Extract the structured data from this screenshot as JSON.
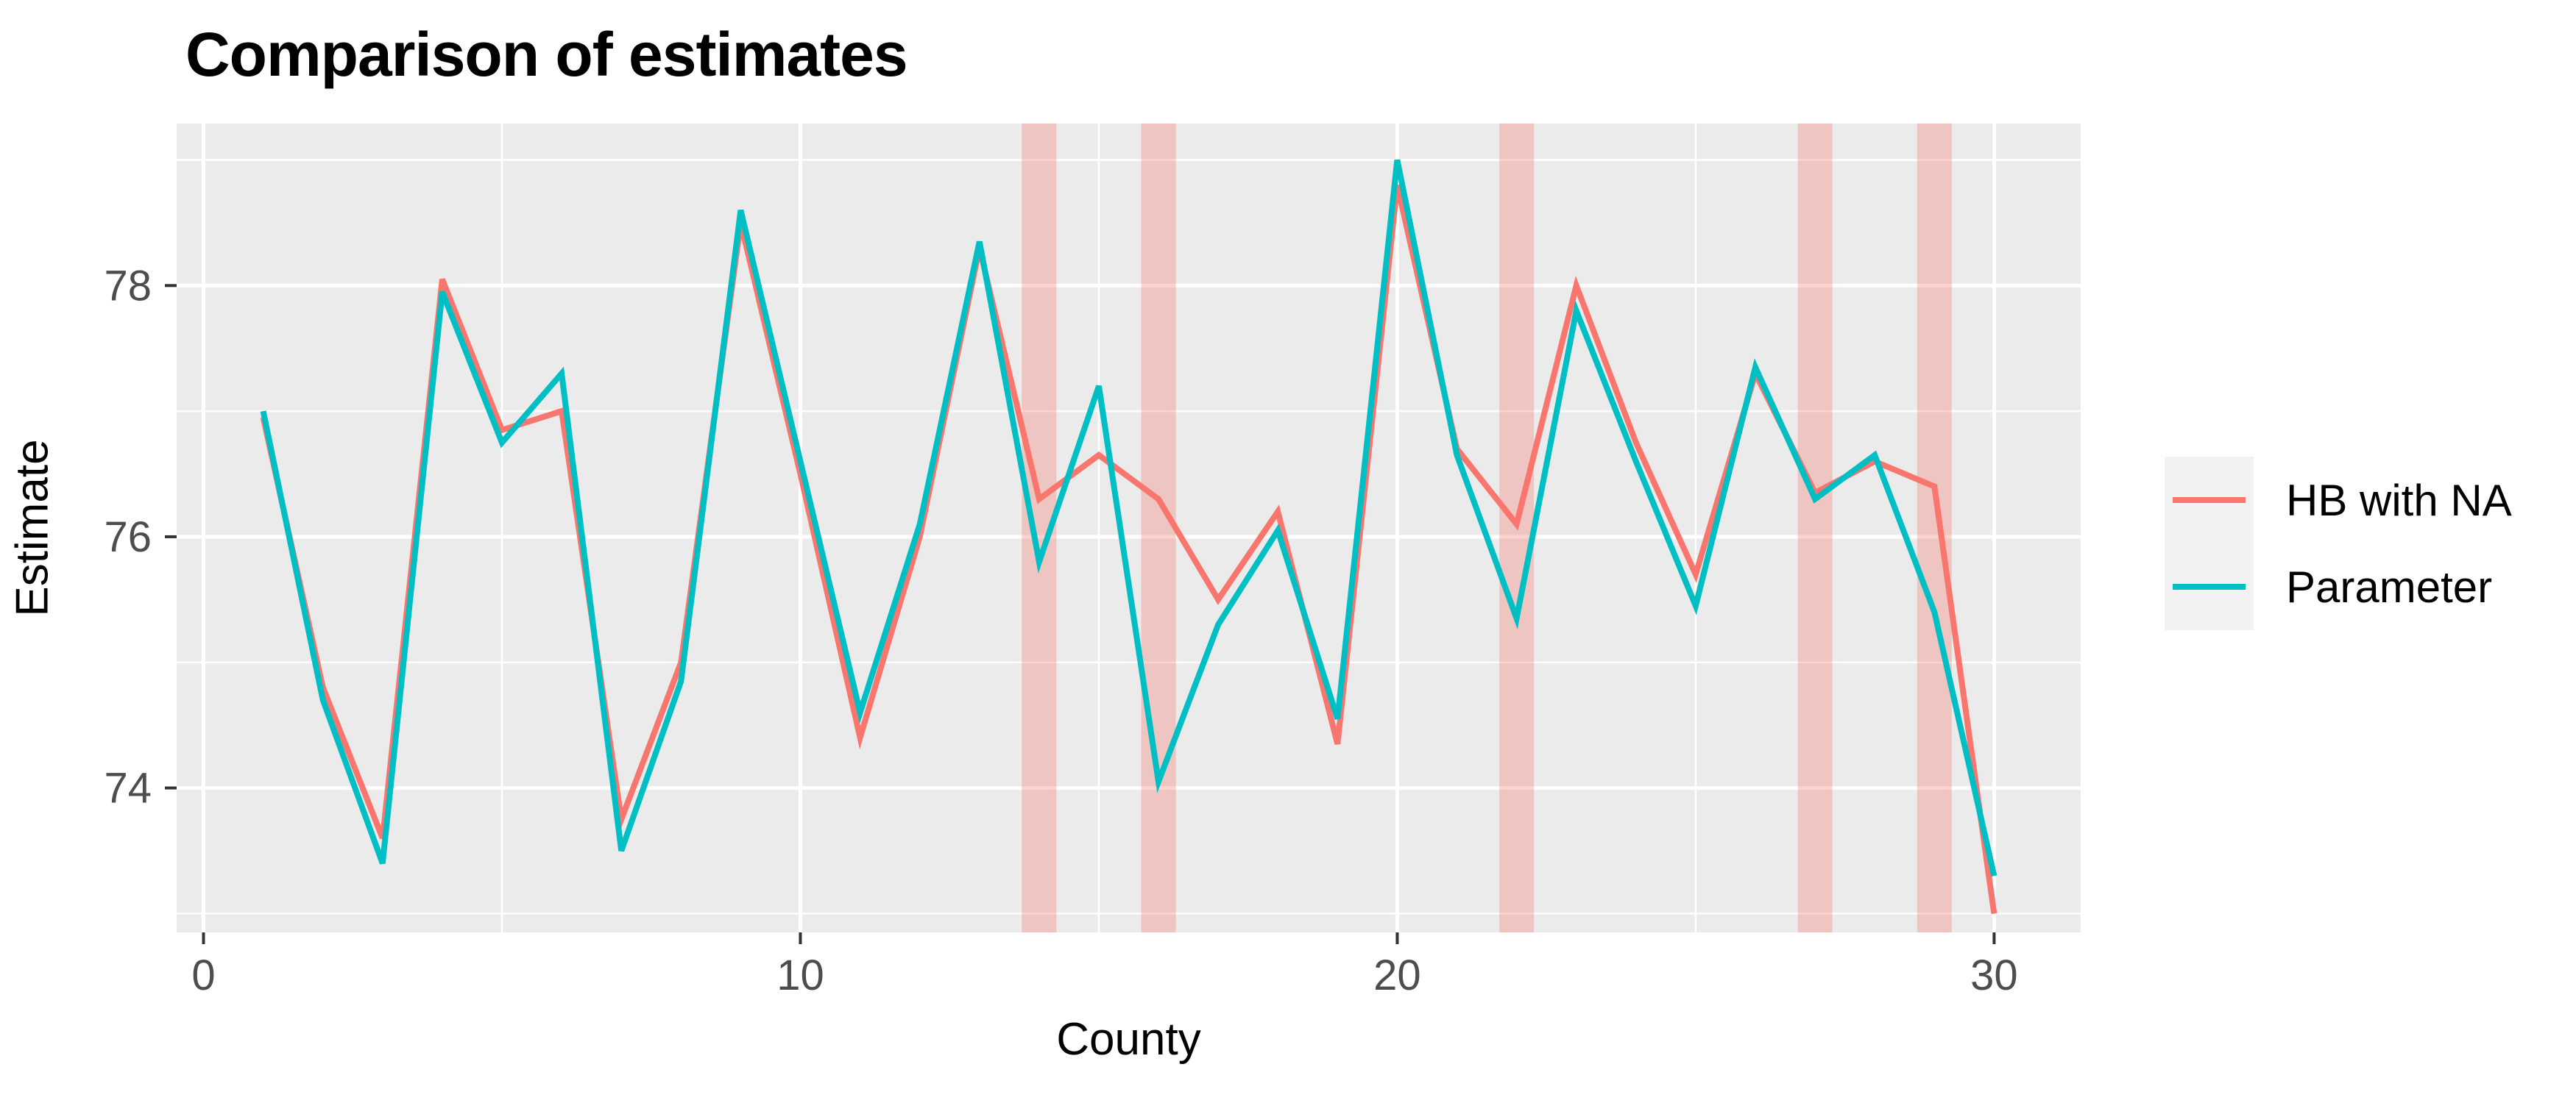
{
  "page": {
    "background": "#FFFFFF"
  },
  "chart_data": {
    "type": "line",
    "title": "Comparison of estimates",
    "xlabel": "County",
    "ylabel": "Estimate",
    "x": [
      1,
      2,
      3,
      4,
      5,
      6,
      7,
      8,
      9,
      10,
      11,
      12,
      13,
      14,
      15,
      16,
      17,
      18,
      19,
      20,
      21,
      22,
      23,
      24,
      25,
      26,
      27,
      28,
      29,
      30
    ],
    "series": [
      {
        "name": "HB with NA",
        "color": "#F8766D",
        "values": [
          76.95,
          74.8,
          73.6,
          78.05,
          76.85,
          77.0,
          73.75,
          75.0,
          78.5,
          76.5,
          74.4,
          76.0,
          78.3,
          76.3,
          76.65,
          76.3,
          75.5,
          76.2,
          74.35,
          78.8,
          76.7,
          76.1,
          78.0,
          76.75,
          75.7,
          77.3,
          76.35,
          76.6,
          76.4,
          73.0
        ]
      },
      {
        "name": "Parameter",
        "color": "#00BFC4",
        "values": [
          77.0,
          74.7,
          73.4,
          77.95,
          76.75,
          77.3,
          73.5,
          74.85,
          78.6,
          76.6,
          74.6,
          76.1,
          78.35,
          75.8,
          77.2,
          74.05,
          75.3,
          76.05,
          74.55,
          79.0,
          76.65,
          75.35,
          77.8,
          76.6,
          75.45,
          77.35,
          76.3,
          76.65,
          75.4,
          73.3
        ]
      }
    ],
    "highlight_bands": {
      "counties": [
        14,
        16,
        22,
        27,
        29
      ],
      "color": "#F8766D",
      "opacity": 0.32,
      "half_width": 0.29
    },
    "x_ticks": [
      0,
      10,
      20,
      30
    ],
    "y_ticks": [
      74,
      76,
      78
    ],
    "x_minor_ticks": [
      5,
      15,
      25
    ],
    "y_minor_ticks": [
      73,
      75,
      77,
      79
    ],
    "xlim": [
      -0.45,
      31.45
    ],
    "ylim": [
      72.85,
      79.29
    ],
    "grid": "on",
    "legend_position": "right",
    "panel_bg": "#EBEBEB",
    "grid_color": "#FFFFFF",
    "tick_label_color": "#4D4D4D",
    "tick_mark_color": "#333333"
  }
}
